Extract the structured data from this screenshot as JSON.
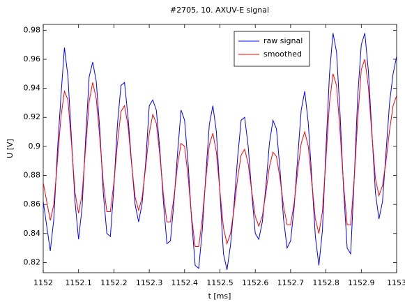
{
  "chart_data": {
    "type": "line",
    "title": "#2705, 10. AXUV-E signal",
    "xlabel": "t [ms]",
    "ylabel": "U [V]",
    "x": [
      1152.0,
      1152.01,
      1152.02,
      1152.03,
      1152.04,
      1152.05,
      1152.06,
      1152.07,
      1152.08,
      1152.09,
      1152.1,
      1152.11,
      1152.12,
      1152.13,
      1152.14,
      1152.15,
      1152.16,
      1152.17,
      1152.18,
      1152.19,
      1152.2,
      1152.21,
      1152.22,
      1152.23,
      1152.24,
      1152.25,
      1152.26,
      1152.27,
      1152.28,
      1152.29,
      1152.3,
      1152.31,
      1152.32,
      1152.33,
      1152.34,
      1152.35,
      1152.36,
      1152.37,
      1152.38,
      1152.39,
      1152.4,
      1152.41,
      1152.42,
      1152.43,
      1152.44,
      1152.45,
      1152.46,
      1152.47,
      1152.48,
      1152.49,
      1152.5,
      1152.51,
      1152.52,
      1152.53,
      1152.54,
      1152.55,
      1152.56,
      1152.57,
      1152.58,
      1152.59,
      1152.6,
      1152.61,
      1152.62,
      1152.63,
      1152.64,
      1152.65,
      1152.66,
      1152.67,
      1152.68,
      1152.69,
      1152.7,
      1152.71,
      1152.72,
      1152.73,
      1152.74,
      1152.75,
      1152.76,
      1152.77,
      1152.78,
      1152.79,
      1152.8,
      1152.81,
      1152.82,
      1152.83,
      1152.84,
      1152.85,
      1152.86,
      1152.87,
      1152.88,
      1152.89,
      1152.9,
      1152.91,
      1152.92,
      1152.93,
      1152.94,
      1152.95,
      1152.96,
      1152.97,
      1152.98,
      1152.99,
      1153.0
    ],
    "series": [
      {
        "name": "raw signal",
        "color": "#0000ff",
        "values": [
          0.862,
          0.845,
          0.828,
          0.85,
          0.896,
          0.934,
          0.968,
          0.948,
          0.905,
          0.862,
          0.836,
          0.858,
          0.905,
          0.948,
          0.958,
          0.945,
          0.912,
          0.868,
          0.84,
          0.838,
          0.872,
          0.915,
          0.942,
          0.944,
          0.92,
          0.889,
          0.86,
          0.848,
          0.861,
          0.889,
          0.928,
          0.932,
          0.925,
          0.898,
          0.862,
          0.833,
          0.835,
          0.862,
          0.895,
          0.925,
          0.918,
          0.888,
          0.849,
          0.818,
          0.816,
          0.842,
          0.88,
          0.915,
          0.928,
          0.91,
          0.868,
          0.826,
          0.815,
          0.832,
          0.86,
          0.892,
          0.918,
          0.92,
          0.9,
          0.868,
          0.84,
          0.836,
          0.848,
          0.872,
          0.902,
          0.918,
          0.912,
          0.884,
          0.85,
          0.83,
          0.835,
          0.858,
          0.892,
          0.925,
          0.938,
          0.916,
          0.878,
          0.838,
          0.818,
          0.842,
          0.898,
          0.95,
          0.978,
          0.965,
          0.922,
          0.87,
          0.83,
          0.826,
          0.878,
          0.935,
          0.97,
          0.978,
          0.952,
          0.91,
          0.868,
          0.85,
          0.862,
          0.896,
          0.93,
          0.95,
          0.962
        ]
      },
      {
        "name": "smoothed",
        "color": "#ff0000",
        "values": [
          0.875,
          0.862,
          0.849,
          0.86,
          0.889,
          0.92,
          0.938,
          0.932,
          0.902,
          0.868,
          0.854,
          0.867,
          0.899,
          0.931,
          0.944,
          0.933,
          0.906,
          0.875,
          0.855,
          0.855,
          0.875,
          0.902,
          0.924,
          0.928,
          0.914,
          0.888,
          0.865,
          0.856,
          0.865,
          0.886,
          0.909,
          0.922,
          0.916,
          0.894,
          0.867,
          0.848,
          0.848,
          0.865,
          0.887,
          0.902,
          0.9,
          0.879,
          0.851,
          0.831,
          0.831,
          0.85,
          0.877,
          0.901,
          0.909,
          0.896,
          0.869,
          0.844,
          0.833,
          0.84,
          0.857,
          0.878,
          0.894,
          0.898,
          0.888,
          0.869,
          0.852,
          0.845,
          0.852,
          0.868,
          0.886,
          0.896,
          0.893,
          0.878,
          0.859,
          0.846,
          0.846,
          0.861,
          0.883,
          0.902,
          0.91,
          0.9,
          0.875,
          0.85,
          0.84,
          0.855,
          0.891,
          0.93,
          0.95,
          0.942,
          0.91,
          0.873,
          0.846,
          0.846,
          0.878,
          0.919,
          0.953,
          0.96,
          0.941,
          0.908,
          0.878,
          0.866,
          0.873,
          0.89,
          0.911,
          0.928,
          0.935
        ]
      }
    ],
    "xlim": [
      1152,
      1153
    ],
    "xticks": [
      1152,
      1152.1,
      1152.2,
      1152.3,
      1152.4,
      1152.5,
      1152.6,
      1152.7,
      1152.8,
      1152.9,
      1153
    ],
    "ylim": [
      0.813,
      0.984
    ],
    "yticks": [
      0.82,
      0.84,
      0.86,
      0.88,
      0.9,
      0.92,
      0.94,
      0.96,
      0.98
    ],
    "legend": "upper-right"
  }
}
